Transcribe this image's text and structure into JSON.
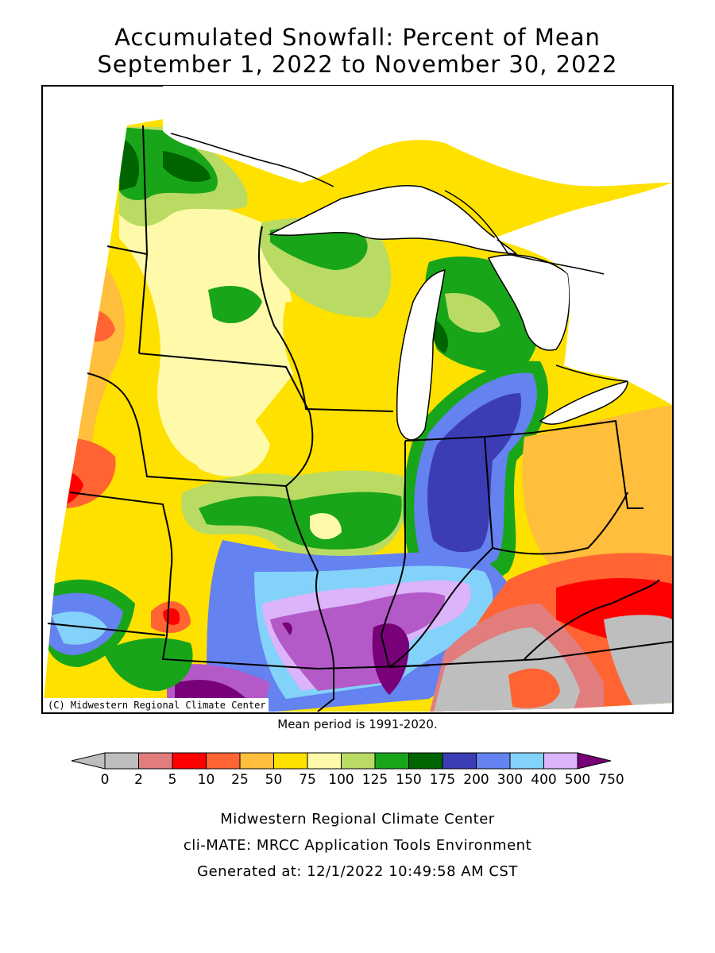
{
  "title_line1": "Accumulated Snowfall: Percent of Mean",
  "title_line2": "September 1, 2022 to November 30, 2022",
  "copyright": "(C) Midwestern Regional Climate Center",
  "mean_note": "Mean period is 1991-2020.",
  "legend": {
    "tick_labels": [
      "0",
      "2",
      "5",
      "10",
      "25",
      "50",
      "75",
      "100",
      "125",
      "150",
      "175",
      "200",
      "300",
      "400",
      "500",
      "750"
    ],
    "colors": [
      "#bebebe",
      "#e27d7d",
      "#ff0000",
      "#ff6432",
      "#ffbe3c",
      "#ffe100",
      "#fffaaa",
      "#b9db64",
      "#19a519",
      "#006400",
      "#3c3cb4",
      "#6482f0",
      "#82d2fa",
      "#dcb4fa",
      "#b45ac8",
      "#780078"
    ]
  },
  "footer": {
    "line1": "Midwestern Regional Climate Center",
    "line2": "cli-MATE: MRCC Application Tools Environment",
    "line3": "Generated at: 12/1/2022 10:49:58 AM CST"
  }
}
